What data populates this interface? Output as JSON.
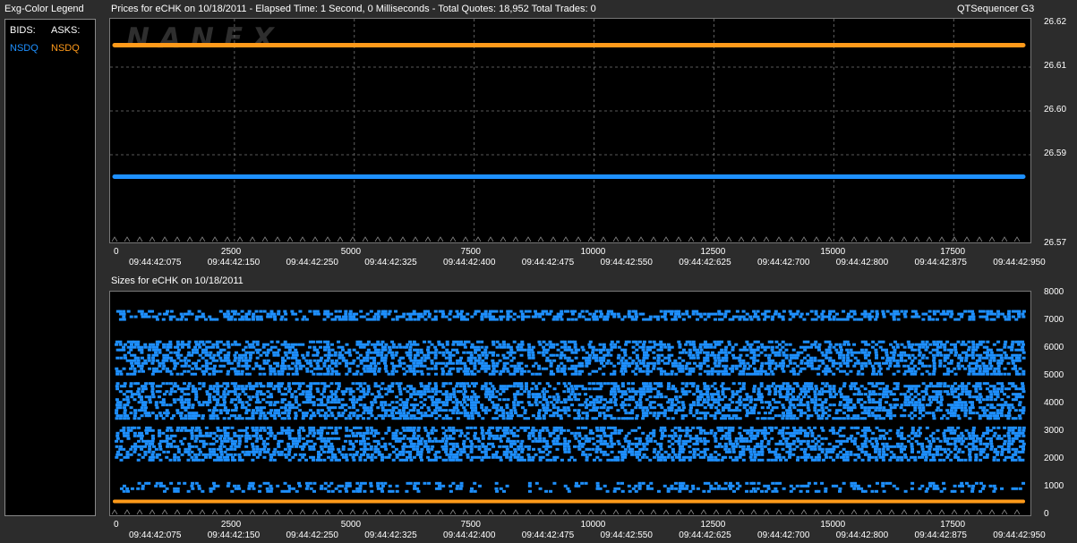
{
  "legend": {
    "title": "Exg-Color Legend",
    "bids_label": "BIDS:",
    "asks_label": "ASKS:",
    "bid_exchange": "NSDQ",
    "ask_exchange": "NSDQ",
    "bid_color": "#1e90ff",
    "ask_color": "#ff9a1a"
  },
  "header": {
    "prices_title": "Prices for  eCHK  on  10/18/2011  -  Elapsed Time: 1 Second, 0 Milliseconds  -  Total Quotes: 18,952  Total Trades: 0",
    "app_name": "QTSequencer G3",
    "sizes_title": "Sizes for  eCHK  on  10/18/2011"
  },
  "watermark": "NANEX",
  "chart_data": [
    {
      "type": "line",
      "title": "Prices for  eCHK  on  10/18/2011",
      "x_ticks": [
        0,
        2500,
        5000,
        7500,
        10000,
        12500,
        15000,
        17500
      ],
      "x_time_labels": [
        "09:44:42:075",
        "09:44:42:150",
        "09:44:42:250",
        "09:44:42:325",
        "09:44:42:400",
        "09:44:42:475",
        "09:44:42:550",
        "09:44:42:625",
        "09:44:42:700",
        "09:44:42:800",
        "09:44:42:875",
        "09:44:42:950"
      ],
      "xlim": [
        0,
        18952
      ],
      "ylim": [
        26.57,
        26.62
      ],
      "y_ticks": [
        "26.62",
        "26.61",
        "26.60",
        "26.59",
        "26.57"
      ],
      "grid": true,
      "series": [
        {
          "name": "NSDQ",
          "side": "ask",
          "color": "#ff9a1a",
          "x": [
            0,
            18952
          ],
          "y": [
            26.615,
            26.615
          ]
        },
        {
          "name": "NSDQ",
          "side": "bid",
          "color": "#1e90ff",
          "x": [
            0,
            18952
          ],
          "y": [
            26.585,
            26.585
          ]
        }
      ]
    },
    {
      "type": "scatter",
      "title": "Sizes for  eCHK  on  10/18/2011",
      "x_ticks": [
        0,
        2500,
        5000,
        7500,
        10000,
        12500,
        15000,
        17500
      ],
      "x_time_labels": [
        "09:44:42:075",
        "09:44:42:150",
        "09:44:42:250",
        "09:44:42:325",
        "09:44:42:400",
        "09:44:42:475",
        "09:44:42:550",
        "09:44:42:625",
        "09:44:42:700",
        "09:44:42:800",
        "09:44:42:875",
        "09:44:42:950"
      ],
      "xlim": [
        0,
        18952
      ],
      "ylim": [
        0,
        8000
      ],
      "y_ticks": [
        "8000",
        "7000",
        "6000",
        "5000",
        "4000",
        "3000",
        "2000",
        "1000",
        "0"
      ],
      "grid": false,
      "series": [
        {
          "name": "NSDQ",
          "side": "bid",
          "color": "#1e90ff",
          "bands": [
            [
              900,
              1200
            ],
            [
              2000,
              3200
            ],
            [
              3500,
              4800
            ],
            [
              5100,
              6300
            ],
            [
              7100,
              7400
            ]
          ]
        },
        {
          "name": "NSDQ",
          "side": "ask",
          "color": "#ff9a1a",
          "x": [
            0,
            18952
          ],
          "y": [
            500,
            500
          ]
        }
      ]
    }
  ]
}
